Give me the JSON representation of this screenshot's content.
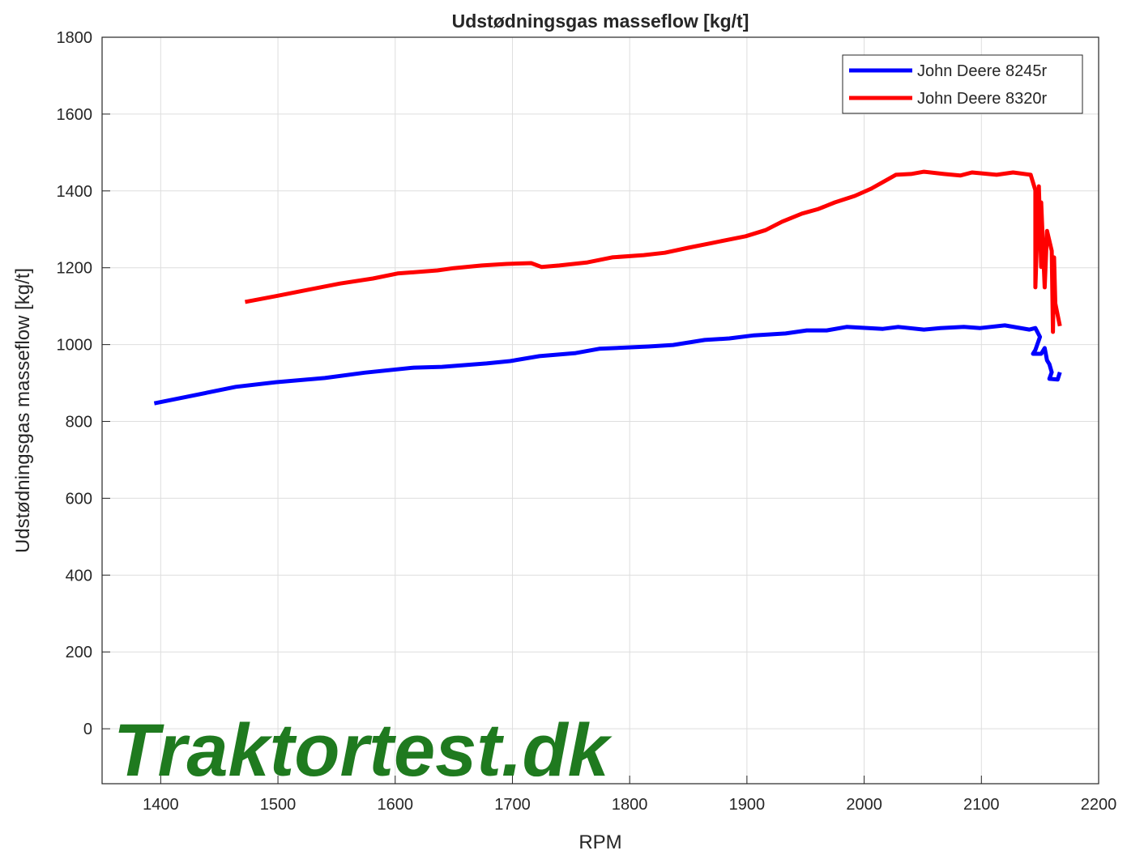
{
  "chart_data": {
    "type": "line",
    "title": "Udstødningsgas masseflow [kg/t]",
    "xlabel": "RPM",
    "ylabel": "Udstødningsgas masseflow [kg/t]",
    "watermark": "Traktortest.dk",
    "xlim": [
      1350,
      2200
    ],
    "xticks": [
      1400,
      1500,
      1600,
      1700,
      1800,
      1900,
      2000,
      2100,
      2200
    ],
    "ylim": [
      -143,
      1800
    ],
    "yticks": [
      0,
      200,
      400,
      600,
      800,
      1000,
      1200,
      1400,
      1600,
      1800
    ],
    "grid": true,
    "legend": "upper right",
    "series": [
      {
        "name": "John Deere 8245r",
        "color": "#0000ff",
        "x": [
          1394.5,
          1422,
          1464,
          1498,
          1540,
          1574,
          1616,
          1640,
          1678,
          1698,
          1723,
          1754,
          1774,
          1816,
          1837,
          1864,
          1885,
          1906,
          1933,
          1951,
          1968,
          1985,
          2016,
          2029,
          2051,
          2065,
          2085,
          2099,
          2120,
          2141,
          2146,
          2150,
          2146,
          2144,
          2151,
          2154,
          2156,
          2158,
          2160,
          2158,
          2165,
          2167
        ],
        "values": [
          847,
          864,
          890,
          902,
          913,
          927,
          940,
          942,
          951,
          957,
          970,
          978,
          989,
          995,
          999,
          1012,
          1016,
          1024,
          1029,
          1037,
          1037,
          1046,
          1041,
          1046,
          1039,
          1043,
          1046,
          1043,
          1050,
          1039,
          1043,
          1020,
          986,
          976,
          976,
          991,
          959,
          949,
          928,
          911,
          909,
          928
        ]
      },
      {
        "name": "John Deere 8320r",
        "color": "#ff0000",
        "x": [
          1472,
          1498,
          1526,
          1553,
          1581,
          1602,
          1636,
          1650,
          1674,
          1695,
          1716,
          1725,
          1740,
          1764,
          1785,
          1812,
          1830,
          1850,
          1871,
          1899,
          1916,
          1930,
          1947,
          1961,
          1975,
          1992,
          2006,
          2016,
          2027,
          2040,
          2051,
          2068,
          2082,
          2092,
          2113,
          2127,
          2142,
          2146,
          2146,
          2149,
          2151,
          2151,
          2154,
          2156,
          2160,
          2161,
          2162,
          2163,
          2167
        ],
        "values": [
          1111,
          1126,
          1143,
          1159,
          1172,
          1185,
          1193,
          1199,
          1206,
          1210,
          1212,
          1202,
          1206,
          1214,
          1227,
          1233,
          1239,
          1252,
          1265,
          1282,
          1298,
          1320,
          1341,
          1353,
          1370,
          1387,
          1406,
          1423,
          1442,
          1444,
          1450,
          1444,
          1440,
          1448,
          1442,
          1448,
          1442,
          1402,
          1149,
          1412,
          1202,
          1370,
          1149,
          1296,
          1244,
          1033,
          1227,
          1107,
          1048
        ]
      }
    ]
  }
}
